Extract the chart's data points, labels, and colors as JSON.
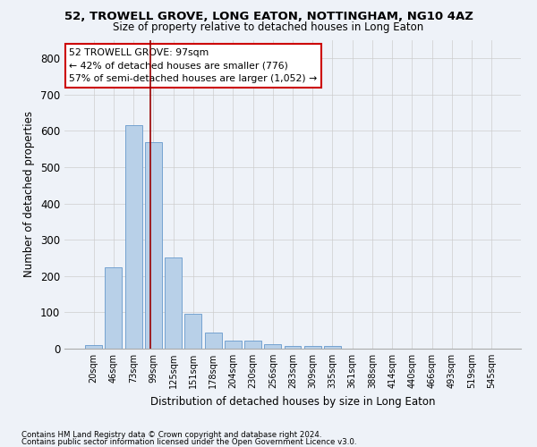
{
  "title": "52, TROWELL GROVE, LONG EATON, NOTTINGHAM, NG10 4AZ",
  "subtitle": "Size of property relative to detached houses in Long Eaton",
  "xlabel": "Distribution of detached houses by size in Long Eaton",
  "ylabel": "Number of detached properties",
  "footnote1": "Contains HM Land Registry data © Crown copyright and database right 2024.",
  "footnote2": "Contains public sector information licensed under the Open Government Licence v3.0.",
  "bar_labels": [
    "20sqm",
    "46sqm",
    "73sqm",
    "99sqm",
    "125sqm",
    "151sqm",
    "178sqm",
    "204sqm",
    "230sqm",
    "256sqm",
    "283sqm",
    "309sqm",
    "335sqm",
    "361sqm",
    "388sqm",
    "414sqm",
    "440sqm",
    "466sqm",
    "493sqm",
    "519sqm",
    "545sqm"
  ],
  "bar_values": [
    10,
    225,
    617,
    568,
    252,
    95,
    45,
    22,
    22,
    12,
    8,
    8,
    8,
    0,
    0,
    0,
    0,
    0,
    0,
    0,
    0
  ],
  "bar_color": "#b8d0e8",
  "bar_edgecolor": "#6699cc",
  "grid_color": "#cccccc",
  "background_color": "#eef2f8",
  "vline_color": "#990000",
  "annotation_text": "52 TROWELL GROVE: 97sqm\n← 42% of detached houses are smaller (776)\n57% of semi-detached houses are larger (1,052) →",
  "annotation_box_color": "#ffffff",
  "annotation_box_edgecolor": "#cc0000",
  "ylim": [
    0,
    850
  ],
  "yticks": [
    0,
    100,
    200,
    300,
    400,
    500,
    600,
    700,
    800
  ]
}
